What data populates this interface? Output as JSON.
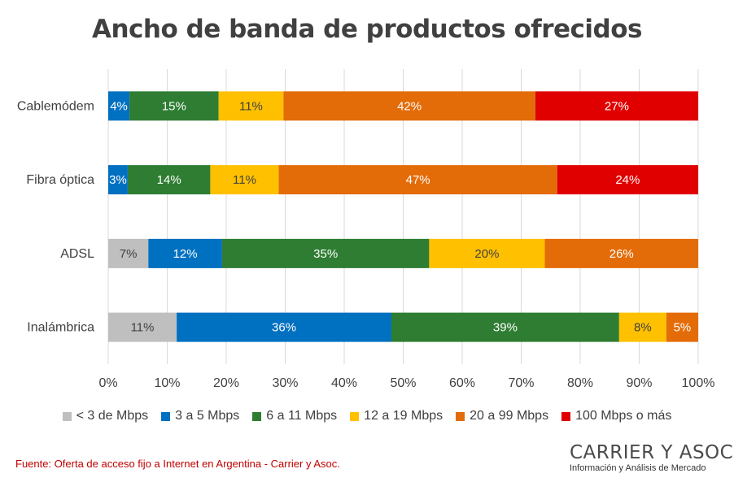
{
  "chart_data": {
    "type": "bar",
    "orientation": "horizontal",
    "stacked": true,
    "title": "Ancho de banda de productos ofrecidos",
    "categories": [
      "Cablemódem",
      "Fibra óptica",
      "ADSL",
      "Inalámbrica"
    ],
    "series": [
      {
        "name": "< 3 de Mbps",
        "color": "#bfbfbf",
        "values": [
          0,
          0,
          7,
          11
        ]
      },
      {
        "name": "3 a 5 Mbps",
        "color": "#0070c0",
        "values": [
          4,
          3,
          12,
          36
        ]
      },
      {
        "name": "6 a 11 Mbps",
        "color": "#2e7d32",
        "values": [
          15,
          14,
          35,
          39
        ]
      },
      {
        "name": "12 a 19 Mbps",
        "color": "#ffc000",
        "values": [
          11,
          11,
          20,
          8
        ]
      },
      {
        "name": "20 a 99 Mbps",
        "color": "#e36c09",
        "values": [
          42,
          47,
          26,
          5
        ]
      },
      {
        "name": "100 Mbps o más",
        "color": "#e00000",
        "values": [
          27,
          24,
          0,
          0
        ]
      }
    ],
    "bar_segments_percent": [
      [
        0,
        3.6,
        15.1,
        11.0,
        42.7,
        27.6
      ],
      [
        0,
        3.3,
        14.0,
        11.6,
        47.2,
        23.9
      ],
      [
        6.8,
        12.5,
        35.1,
        19.6,
        26.0,
        0
      ],
      [
        11.6,
        36.4,
        38.6,
        8.0,
        5.4,
        0
      ]
    ],
    "x_ticks": [
      "0%",
      "10%",
      "20%",
      "30%",
      "40%",
      "50%",
      "60%",
      "70%",
      "80%",
      "90%",
      "100%"
    ],
    "xlim": [
      0,
      100
    ],
    "grid": "vertical",
    "legend_position": "bottom"
  },
  "source": "Fuente: Oferta de acceso fijo a Internet en Argentina - Carrier y Asoc.",
  "logo": {
    "name": "CARRIER Y ASOC.",
    "tagline": "Información y Análisis de Mercado"
  }
}
